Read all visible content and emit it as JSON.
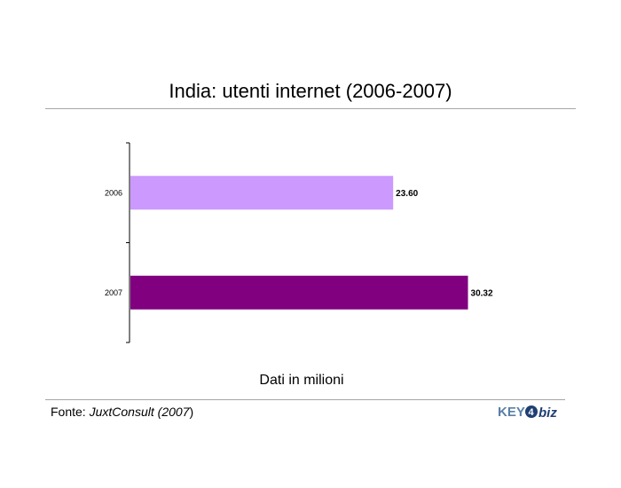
{
  "chart_data": {
    "type": "bar",
    "orientation": "horizontal",
    "title": "India: utenti internet (2006-2007)",
    "xlabel": "Dati in milioni",
    "ylabel": "",
    "categories": [
      "2006",
      "2007"
    ],
    "values": [
      23.6,
      30.32
    ],
    "data_labels": [
      "23.60",
      "30.32"
    ],
    "colors": [
      "#cc99ff",
      "#800080"
    ],
    "xlim": [
      0,
      35
    ],
    "grid": false,
    "legend": "none"
  },
  "source": {
    "prefix": "Fonte: ",
    "name": "JuxtConsult",
    "paren_open": " (",
    "year": "2007",
    "paren_close": ")"
  },
  "logo": {
    "text_left": "KEY",
    "text_num": "4",
    "text_right": "biz",
    "color_left": "#5a7fa6",
    "color_right": "#1f3f73"
  }
}
